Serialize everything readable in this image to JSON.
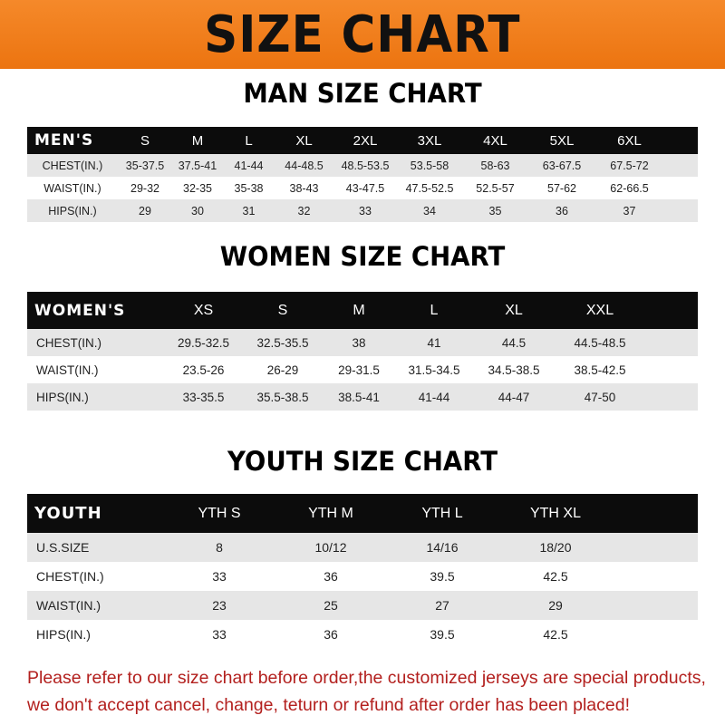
{
  "title": "SIZE CHART",
  "colors": {
    "banner": "#ef7a18",
    "header_row": "#0c0c0c",
    "stripe": "#e6e6e6",
    "note": "#b3201e"
  },
  "men": {
    "title": "MAN SIZE CHART",
    "header": [
      "MEN'S",
      "S",
      "M",
      "L",
      "XL",
      "2XL",
      "3XL",
      "4XL",
      "5XL",
      "6XL"
    ],
    "rows": [
      [
        "CHEST(IN.)",
        "35-37.5",
        "37.5-41",
        "41-44",
        "44-48.5",
        "48.5-53.5",
        "53.5-58",
        "58-63",
        "63-67.5",
        "67.5-72"
      ],
      [
        "WAIST(IN.)",
        "29-32",
        "32-35",
        "35-38",
        "38-43",
        "43-47.5",
        "47.5-52.5",
        "52.5-57",
        "57-62",
        "62-66.5"
      ],
      [
        "HIPS(IN.)",
        "29",
        "30",
        "31",
        "32",
        "33",
        "34",
        "35",
        "36",
        "37"
      ]
    ]
  },
  "women": {
    "title": "WOMEN SIZE CHART",
    "header": [
      "WOMEN'S",
      "XS",
      "S",
      "M",
      "L",
      "XL",
      "XXL"
    ],
    "rows": [
      [
        "CHEST(IN.)",
        "29.5-32.5",
        "32.5-35.5",
        "38",
        "41",
        "44.5",
        "44.5-48.5"
      ],
      [
        "WAIST(IN.)",
        "23.5-26",
        "26-29",
        "29-31.5",
        "31.5-34.5",
        "34.5-38.5",
        "38.5-42.5"
      ],
      [
        "HIPS(IN.)",
        "33-35.5",
        "35.5-38.5",
        "38.5-41",
        "41-44",
        "44-47",
        "47-50"
      ]
    ]
  },
  "youth": {
    "title": "YOUTH SIZE CHART",
    "header": [
      "YOUTH",
      "YTH S",
      "YTH M",
      "YTH L",
      "YTH XL"
    ],
    "rows": [
      [
        "U.S.SIZE",
        "8",
        "10/12",
        "14/16",
        "18/20"
      ],
      [
        "CHEST(IN.)",
        "33",
        "36",
        "39.5",
        "42.5"
      ],
      [
        "WAIST(IN.)",
        "23",
        "25",
        "27",
        "29"
      ],
      [
        "HIPS(IN.)",
        "33",
        "36",
        "39.5",
        "42.5"
      ]
    ]
  },
  "note": {
    "line1": "Please refer to our size chart before order,the customized jerseys are special products,",
    "line2": "we don't accept cancel, change, teturn or refund after order has been placed!"
  }
}
